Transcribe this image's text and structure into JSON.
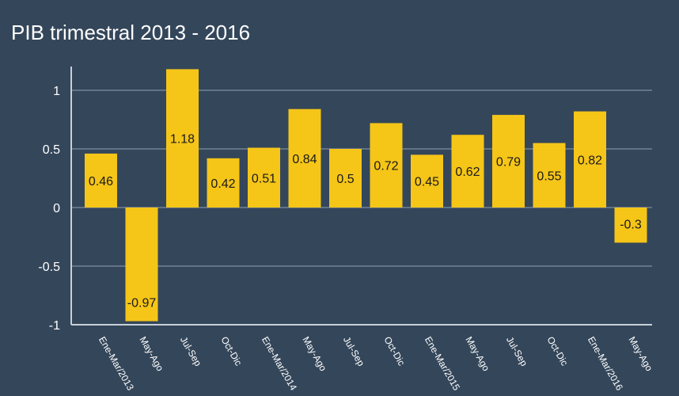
{
  "chart_data": {
    "type": "bar",
    "title": "PIB trimestral 2013 - 2016",
    "xlabel": "",
    "ylabel": "",
    "categories": [
      "Ene-Mar/2013",
      "May-Ago",
      "Jul-Sep",
      "Oct-Dic",
      "Ene-Mar/2014",
      "May-Ago",
      "Jul-Sep",
      "Oct-Dic",
      "Ene-Mar/2015",
      "May-Ago",
      "Jul-Sep",
      "Oct-Dic",
      "Ene-Mar/2016",
      "May-Ago"
    ],
    "values": [
      0.46,
      -0.97,
      1.18,
      0.42,
      0.51,
      0.84,
      0.5,
      0.72,
      0.45,
      0.62,
      0.79,
      0.55,
      0.82,
      -0.3
    ],
    "data_labels": [
      "0.46",
      "-0.97",
      "1.18",
      "0.42",
      "0.51",
      "0.84",
      "0.5",
      "0.72",
      "0.45",
      "0.62",
      "0.79",
      "0.55",
      "0.82",
      "-0.3"
    ],
    "ylim": [
      -1,
      1.2
    ],
    "yticks": [
      1,
      0.5,
      0,
      -0.5,
      -1
    ],
    "ytick_labels": [
      "1",
      "0.5",
      "0",
      "-0.5",
      "-1"
    ],
    "grid": true,
    "legend": "none",
    "colors": {
      "bar": "#f5c518",
      "background": "#34465a",
      "grid": "#8fa0b0"
    }
  }
}
